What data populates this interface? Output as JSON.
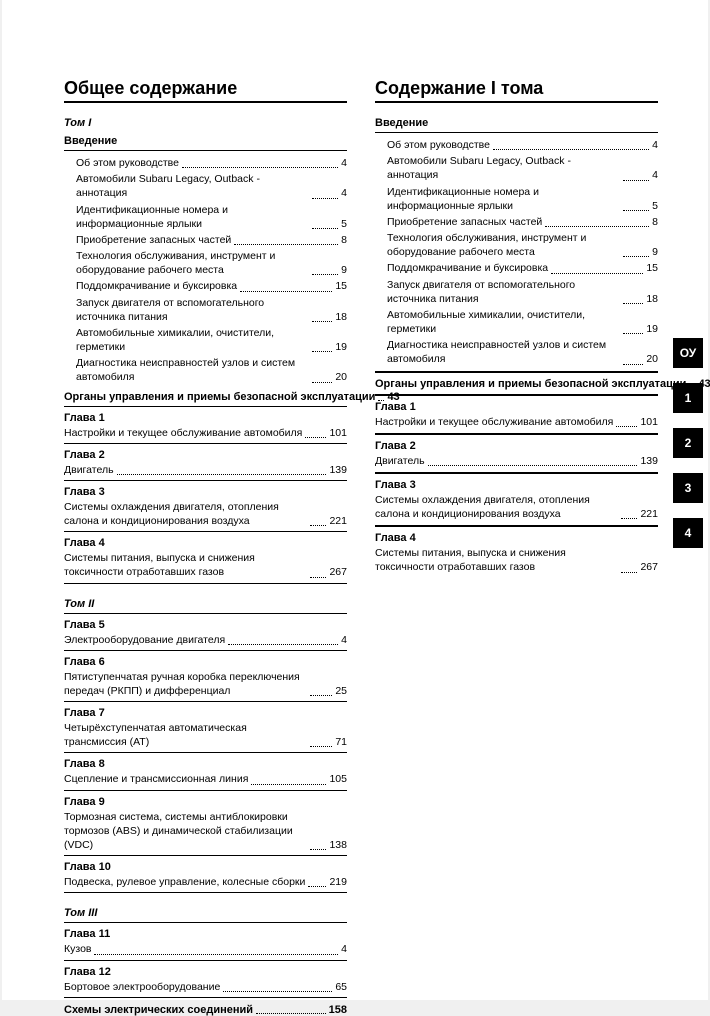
{
  "left": {
    "title": "Общее содержание",
    "vol1": "Том I",
    "intro_label": "Введение",
    "intro_items": [
      {
        "t": "Об этом руководстве",
        "p": "4"
      },
      {
        "t": "Автомобили Subaru Legacy, Outback - аннотация",
        "p": "4"
      },
      {
        "t": "Идентификационные номера и информационные ярлыки",
        "p": "5"
      },
      {
        "t": "Приобретение запасных частей",
        "p": "8"
      },
      {
        "t": "Технология обслуживания, инструмент и оборудование рабочего места",
        "p": "9"
      },
      {
        "t": "Поддомкрачивание и буксировка",
        "p": "15"
      },
      {
        "t": "Запуск двигателя от вспомогательного источника питания",
        "p": "18"
      },
      {
        "t": "Автомобильные химикалии, очистители, герметики",
        "p": "19"
      },
      {
        "t": "Диагностика неисправностей узлов и систем автомобиля",
        "p": "20"
      }
    ],
    "organs": {
      "t": "Органы управления и приемы безопасной эксплуатации",
      "p": "43"
    },
    "chapters1": [
      {
        "h": "Глава 1",
        "t": "Настройки и текущее обслуживание автомобиля",
        "p": "101"
      },
      {
        "h": "Глава 2",
        "t": "Двигатель",
        "p": "139"
      },
      {
        "h": "Глава 3",
        "t": "Системы охлаждения двигателя, отопления салона и кондиционирования воздуха",
        "p": "221"
      },
      {
        "h": "Глава 4",
        "t": "Системы питания, выпуска и снижения токсичности отработавших газов",
        "p": "267"
      }
    ],
    "vol2": "Том II",
    "chapters2": [
      {
        "h": "Глава 5",
        "t": "Электрооборудование двигателя",
        "p": "4"
      },
      {
        "h": "Глава 6",
        "t": "Пятиступенчатая ручная коробка переключения передач (РКПП) и дифференциал",
        "p": "25"
      },
      {
        "h": "Глава 7",
        "t": "Четырёхступенчатая автоматическая трансмиссия (AT)",
        "p": "71"
      },
      {
        "h": "Глава 8",
        "t": "Сцепление и трансмиссионная линия",
        "p": "105"
      },
      {
        "h": "Глава 9",
        "t": "Тормозная система, системы антиблокировки тормозов (ABS) и динамической стабилизации (VDC)",
        "p": "138"
      },
      {
        "h": "Глава 10",
        "t": "Подвеска, рулевое управление, колесные сборки",
        "p": "219"
      }
    ],
    "vol3": "Том III",
    "chapters3": [
      {
        "h": "Глава 11",
        "t": "Кузов",
        "p": "4"
      },
      {
        "h": "Глава 12",
        "t": "Бортовое электрооборудование",
        "p": "65"
      }
    ],
    "schemes": {
      "t": "Схемы электрических соединений",
      "p": "158"
    }
  },
  "right": {
    "title": "Содержание I тома",
    "intro_label": "Введение",
    "intro_items": [
      {
        "t": "Об этом руководстве",
        "p": "4"
      },
      {
        "t": "Автомобили Subaru Legacy, Outback - аннотация",
        "p": "4"
      },
      {
        "t": "Идентификационные номера и информационные ярлыки",
        "p": "5"
      },
      {
        "t": "Приобретение запасных частей",
        "p": "8"
      },
      {
        "t": "Технология обслуживания, инструмент и оборудование рабочего места",
        "p": "9"
      },
      {
        "t": "Поддомкрачивание и буксировка",
        "p": "15"
      },
      {
        "t": "Запуск двигателя от вспомогательного источника питания",
        "p": "18"
      },
      {
        "t": "Автомобильные химикалии, очистители, герметики",
        "p": "19"
      },
      {
        "t": "Диагностика неисправностей узлов и систем автомобиля",
        "p": "20"
      }
    ],
    "organs": {
      "t": "Органы управления и приемы безопасной эксплуатации",
      "p": "43"
    },
    "chapters": [
      {
        "h": "Глава 1",
        "t": "Настройки и текущее обслуживание автомобиля",
        "p": "101"
      },
      {
        "h": "Глава 2",
        "t": "Двигатель",
        "p": "139"
      },
      {
        "h": "Глава 3",
        "t": "Системы охлаждения двигателя, отопления салона и кондиционирования воздуха",
        "p": "221"
      },
      {
        "h": "Глава 4",
        "t": "Системы питания, выпуска и снижения токсичности отработавших газов",
        "p": "267"
      }
    ]
  },
  "tabs": [
    "ОУ",
    "1",
    "2",
    "3",
    "4"
  ]
}
